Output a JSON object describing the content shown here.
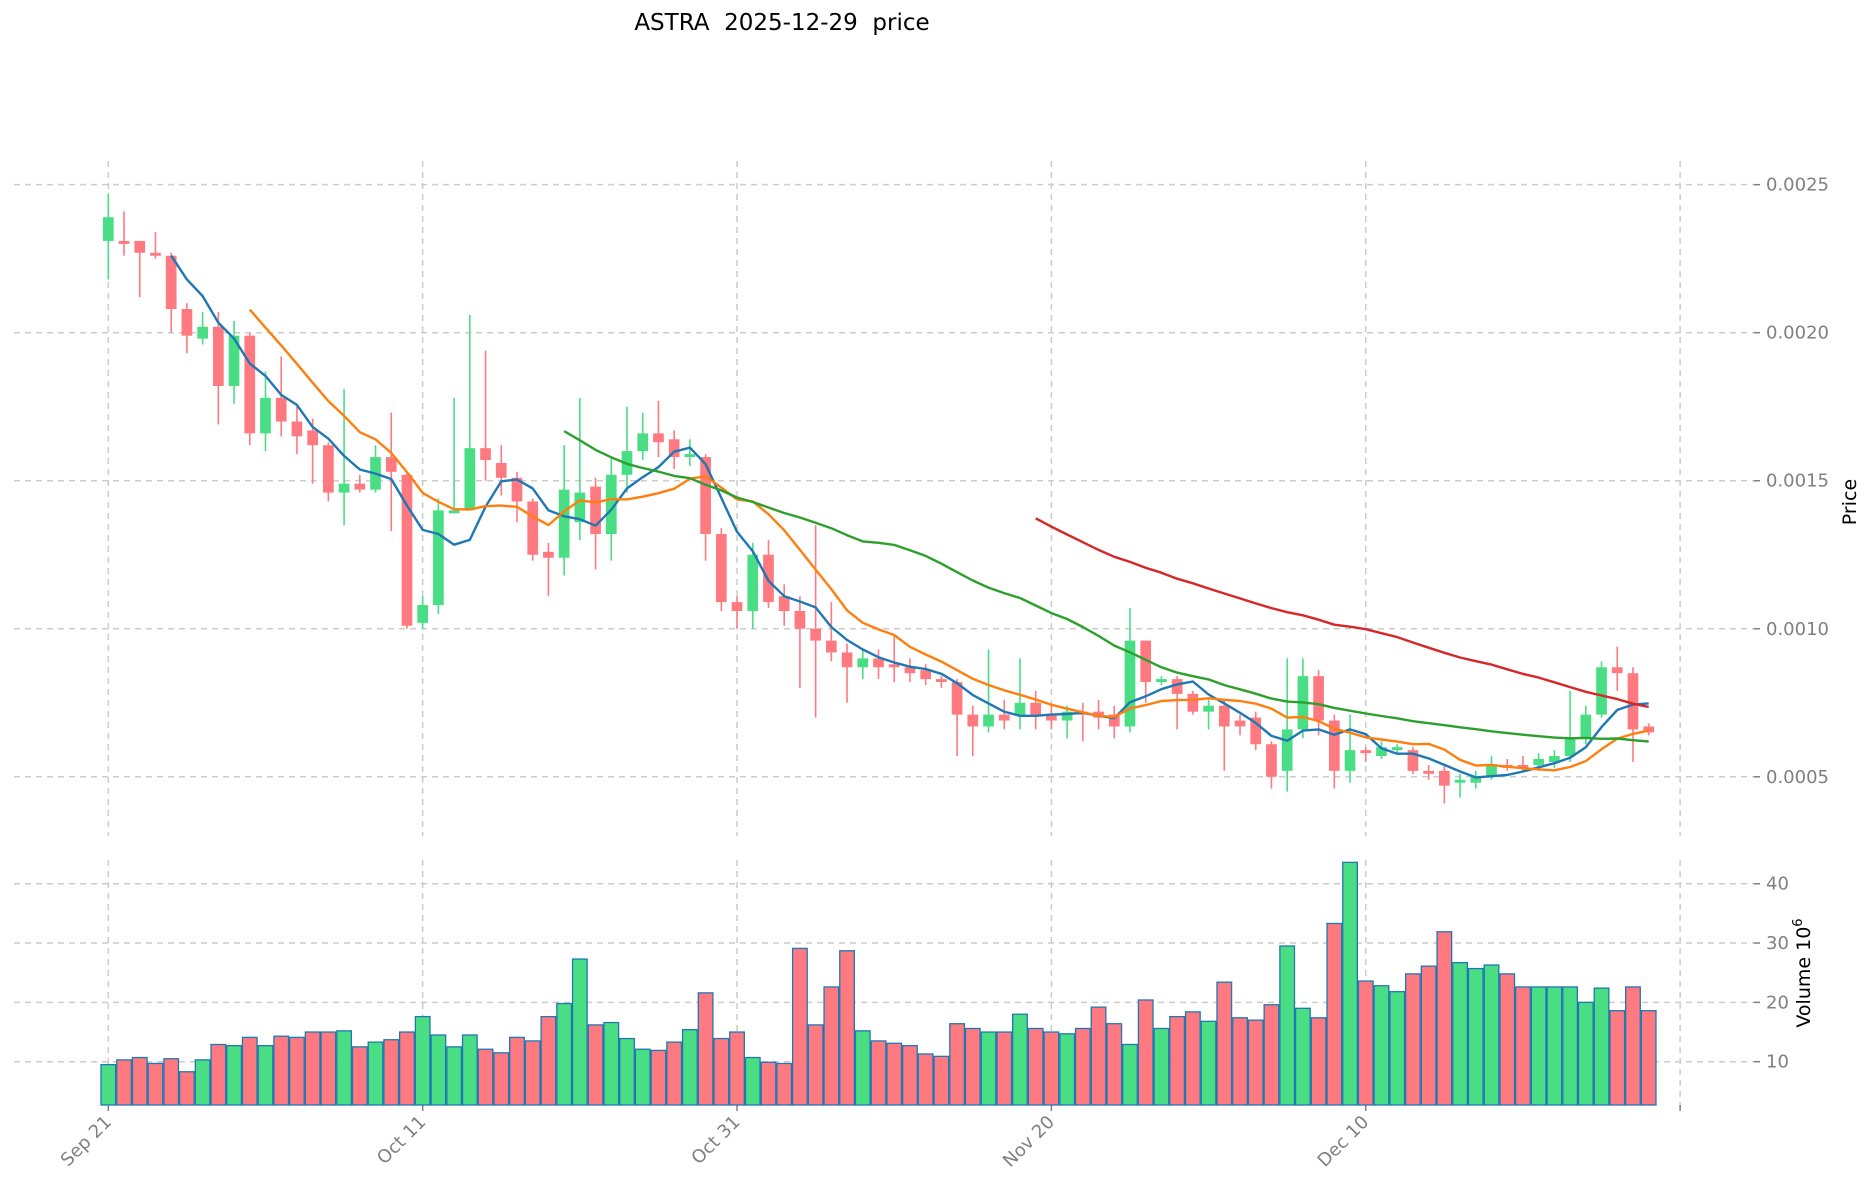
{
  "title": "ASTRA  2025-12-29  price",
  "chart_data": {
    "type": "candlestick",
    "title": "ASTRA  2025-12-29  price",
    "start_date": "2025-09-21",
    "price_axis": {
      "label": "Price",
      "ylim": [
        0.0003,
        0.00258
      ],
      "ticks": [
        0.0005,
        0.001,
        0.0015,
        0.002,
        0.0025
      ],
      "tick_labels": [
        "0.0005",
        "0.0010",
        "0.0015",
        "0.0020",
        "0.0025"
      ],
      "position": "right"
    },
    "volume_axis": {
      "label": "Volume",
      "exponent": "6",
      "ylim": [
        2.7,
        44
      ],
      "ticks": [
        10,
        20,
        30,
        40
      ],
      "tick_labels": [
        "10",
        "20",
        "30",
        "40"
      ],
      "position": "right"
    },
    "x_axis": {
      "xlim": [
        -6,
        104.7
      ],
      "ticks": [
        {
          "day": 0,
          "label": "Sep 21"
        },
        {
          "day": 20,
          "label": "Oct 11"
        },
        {
          "day": 40,
          "label": "Oct 31"
        },
        {
          "day": 60,
          "label": "Nov 20"
        },
        {
          "day": 80,
          "label": "Dec 10"
        },
        {
          "day": 100,
          "label": ""
        }
      ]
    },
    "grid": true,
    "colors": {
      "up": "#4ade84",
      "down": "#ff7a80",
      "volume_edge": "#1f77b4",
      "grid": "#cccccc"
    },
    "moving_averages": [
      {
        "period": 5,
        "color": "#1f77b4"
      },
      {
        "period": 10,
        "color": "#ff7f0e"
      },
      {
        "period": 30,
        "color": "#2ca02c"
      },
      {
        "period": 60,
        "color": "#d62728"
      }
    ],
    "ohlc": [
      [
        0.00231,
        0.00247,
        0.00218,
        0.00239
      ],
      [
        0.00231,
        0.00241,
        0.00226,
        0.0023
      ],
      [
        0.00231,
        0.00231,
        0.00212,
        0.00227
      ],
      [
        0.00227,
        0.00234,
        0.00225,
        0.00226
      ],
      [
        0.00226,
        0.00227,
        0.002,
        0.00208
      ],
      [
        0.00208,
        0.0021,
        0.00193,
        0.00199
      ],
      [
        0.00198,
        0.00207,
        0.00196,
        0.00202
      ],
      [
        0.00202,
        0.00207,
        0.00169,
        0.00182
      ],
      [
        0.00182,
        0.00204,
        0.00176,
        0.00199
      ],
      [
        0.00199,
        0.002,
        0.00162,
        0.00166
      ],
      [
        0.00166,
        0.00187,
        0.0016,
        0.00178
      ],
      [
        0.00178,
        0.00192,
        0.00165,
        0.0017
      ],
      [
        0.0017,
        0.00175,
        0.00159,
        0.00165
      ],
      [
        0.00167,
        0.00171,
        0.00149,
        0.00162
      ],
      [
        0.00162,
        0.00163,
        0.00143,
        0.00146
      ],
      [
        0.00146,
        0.00181,
        0.00135,
        0.00149
      ],
      [
        0.00149,
        0.00152,
        0.00146,
        0.00147
      ],
      [
        0.00147,
        0.00162,
        0.00146,
        0.00158
      ],
      [
        0.00158,
        0.00173,
        0.00133,
        0.00153
      ],
      [
        0.00152,
        0.00153,
        0.001,
        0.00101
      ],
      [
        0.00102,
        0.00111,
        0.001,
        0.00108
      ],
      [
        0.00108,
        0.00144,
        0.00105,
        0.0014
      ],
      [
        0.00139,
        0.00178,
        0.00139,
        0.0014
      ],
      [
        0.0014,
        0.00206,
        0.0014,
        0.00161
      ],
      [
        0.00161,
        0.00194,
        0.0015,
        0.00157
      ],
      [
        0.00156,
        0.00162,
        0.00145,
        0.00151
      ],
      [
        0.00151,
        0.00153,
        0.00136,
        0.00143
      ],
      [
        0.00143,
        0.00144,
        0.00123,
        0.00125
      ],
      [
        0.00126,
        0.00129,
        0.00111,
        0.00124
      ],
      [
        0.00124,
        0.00162,
        0.00118,
        0.00147
      ],
      [
        0.00136,
        0.00178,
        0.0013,
        0.00146
      ],
      [
        0.00148,
        0.00151,
        0.0012,
        0.00132
      ],
      [
        0.00132,
        0.00158,
        0.00123,
        0.00152
      ],
      [
        0.00152,
        0.00175,
        0.00146,
        0.0016
      ],
      [
        0.0016,
        0.00173,
        0.00157,
        0.00166
      ],
      [
        0.00166,
        0.00177,
        0.00158,
        0.00163
      ],
      [
        0.00164,
        0.00167,
        0.00154,
        0.00158
      ],
      [
        0.00158,
        0.00164,
        0.00155,
        0.00159
      ],
      [
        0.00158,
        0.00159,
        0.00123,
        0.00132
      ],
      [
        0.00132,
        0.00134,
        0.00106,
        0.00109
      ],
      [
        0.00109,
        0.00111,
        0.001,
        0.00106
      ],
      [
        0.00106,
        0.00129,
        0.001,
        0.00125
      ],
      [
        0.00125,
        0.0013,
        0.00107,
        0.00109
      ],
      [
        0.00111,
        0.00115,
        0.00101,
        0.00106
      ],
      [
        0.00106,
        0.00111,
        0.0008,
        0.001
      ],
      [
        0.001,
        0.00135,
        0.0007,
        0.00096
      ],
      [
        0.00096,
        0.00109,
        0.00089,
        0.00092
      ],
      [
        0.00092,
        0.00095,
        0.00075,
        0.00087
      ],
      [
        0.00087,
        0.00093,
        0.00083,
        0.0009
      ],
      [
        0.0009,
        0.00093,
        0.00083,
        0.00087
      ],
      [
        0.00088,
        0.00098,
        0.00082,
        0.00087
      ],
      [
        0.00087,
        0.0009,
        0.00082,
        0.00085
      ],
      [
        0.00086,
        0.00088,
        0.00081,
        0.00083
      ],
      [
        0.00083,
        0.00084,
        0.0008,
        0.00082
      ],
      [
        0.00082,
        0.00083,
        0.00057,
        0.00071
      ],
      [
        0.00071,
        0.00074,
        0.00057,
        0.00067
      ],
      [
        0.00067,
        0.00093,
        0.00065,
        0.00071
      ],
      [
        0.00071,
        0.00076,
        0.00066,
        0.00069
      ],
      [
        0.00071,
        0.0009,
        0.00066,
        0.00075
      ],
      [
        0.00075,
        0.00079,
        0.00066,
        0.00071
      ],
      [
        0.00071,
        0.00074,
        0.00066,
        0.00069
      ],
      [
        0.00069,
        0.00074,
        0.00063,
        0.00072
      ],
      [
        0.00072,
        0.00075,
        0.00062,
        0.00071
      ],
      [
        0.00072,
        0.00076,
        0.00066,
        0.0007
      ],
      [
        0.00071,
        0.00074,
        0.00063,
        0.00067
      ],
      [
        0.00067,
        0.00107,
        0.00065,
        0.00096
      ],
      [
        0.00096,
        0.00096,
        0.00075,
        0.00082
      ],
      [
        0.00082,
        0.00084,
        0.00081,
        0.00083
      ],
      [
        0.00083,
        0.00084,
        0.00066,
        0.00078
      ],
      [
        0.00078,
        0.00079,
        0.00071,
        0.00072
      ],
      [
        0.00072,
        0.00076,
        0.00066,
        0.00074
      ],
      [
        0.00074,
        0.00076,
        0.00052,
        0.00067
      ],
      [
        0.00069,
        0.00071,
        0.00064,
        0.00067
      ],
      [
        0.0007,
        0.00072,
        0.00059,
        0.00061
      ],
      [
        0.00061,
        0.00062,
        0.00046,
        0.0005
      ],
      [
        0.00052,
        0.0009,
        0.00045,
        0.00066
      ],
      [
        0.00066,
        0.0009,
        0.00063,
        0.00084
      ],
      [
        0.00084,
        0.00086,
        0.00064,
        0.00069
      ],
      [
        0.00069,
        0.00071,
        0.00046,
        0.00052
      ],
      [
        0.00052,
        0.00071,
        0.00048,
        0.00059
      ],
      [
        0.00059,
        0.0006,
        0.00055,
        0.00058
      ],
      [
        0.00057,
        0.00062,
        0.00056,
        0.0006
      ],
      [
        0.00059,
        0.00061,
        0.00058,
        0.0006
      ],
      [
        0.00059,
        0.0006,
        0.00051,
        0.00052
      ],
      [
        0.00052,
        0.00054,
        0.00049,
        0.00051
      ],
      [
        0.00052,
        0.00054,
        0.00041,
        0.00047
      ],
      [
        0.00048,
        0.00051,
        0.00043,
        0.00049
      ],
      [
        0.00048,
        0.00052,
        0.00046,
        0.0005
      ],
      [
        0.0005,
        0.00057,
        0.00049,
        0.00054
      ],
      [
        0.00054,
        0.00056,
        0.00052,
        0.00053
      ],
      [
        0.00054,
        0.00057,
        0.00052,
        0.00053
      ],
      [
        0.00054,
        0.00058,
        0.00052,
        0.00056
      ],
      [
        0.00055,
        0.00059,
        0.00053,
        0.00057
      ],
      [
        0.00057,
        0.00079,
        0.00055,
        0.00063
      ],
      [
        0.00063,
        0.00074,
        0.00061,
        0.00071
      ],
      [
        0.00071,
        0.00089,
        0.0007,
        0.00087
      ],
      [
        0.00087,
        0.00094,
        0.00079,
        0.00085
      ],
      [
        0.00085,
        0.00087,
        0.00055,
        0.00066
      ],
      [
        0.00067,
        0.00068,
        0.00064,
        0.00065
      ]
    ],
    "volume": [
      9.5,
      10.3,
      10.7,
      9.7,
      10.5,
      8.3,
      10.3,
      12.9,
      12.7,
      14.1,
      12.7,
      14.3,
      14.1,
      15.0,
      15.0,
      15.2,
      12.5,
      13.3,
      13.7,
      15.0,
      17.6,
      14.5,
      12.5,
      14.5,
      12.1,
      11.5,
      14.1,
      13.5,
      17.6,
      19.8,
      27.3,
      16.2,
      16.6,
      13.9,
      12.1,
      11.9,
      13.3,
      15.4,
      21.6,
      13.9,
      15.0,
      10.7,
      9.9,
      9.7,
      29.1,
      16.2,
      22.6,
      28.7,
      15.2,
      13.5,
      13.1,
      12.7,
      11.3,
      10.9,
      16.4,
      15.6,
      15.0,
      15.0,
      18.0,
      15.6,
      15.0,
      14.7,
      15.6,
      19.2,
      16.4,
      12.9,
      20.4,
      15.6,
      17.6,
      18.4,
      16.8,
      23.4,
      17.4,
      17.0,
      19.6,
      29.5,
      19.0,
      17.4,
      33.3,
      43.6,
      23.6,
      22.8,
      21.8,
      24.8,
      26.1,
      31.9,
      26.7,
      25.7,
      26.3,
      24.8,
      22.6,
      22.6,
      22.6,
      22.6,
      20.0,
      22.4,
      18.6,
      22.6,
      18.6
    ]
  }
}
